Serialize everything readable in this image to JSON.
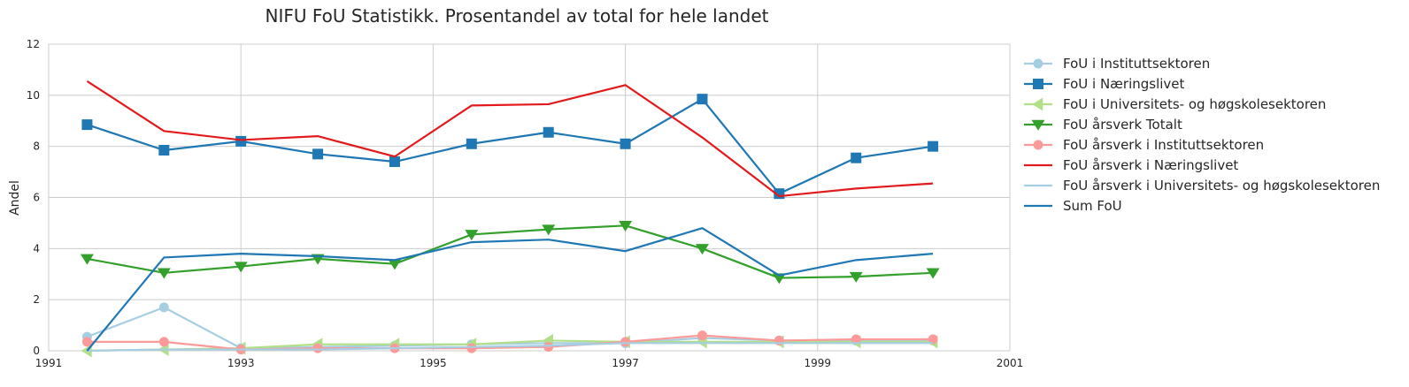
{
  "chart_data": {
    "type": "line",
    "title": "NIFU FoU Statistikk. Prosentandel av total for hele landet",
    "xlabel": "",
    "ylabel": "Andel",
    "xlim": [
      1991,
      2001
    ],
    "ylim": [
      0,
      12
    ],
    "xticks": [
      "1991",
      "1993",
      "1995",
      "1997",
      "1999",
      "2001"
    ],
    "yticks": [
      "0",
      "2",
      "4",
      "6",
      "8",
      "10",
      "12"
    ],
    "grid": true,
    "legend_position": "outside-right",
    "x": [
      1991.4,
      1992.2,
      1993.0,
      1993.8,
      1994.6,
      1995.4,
      1996.2,
      1997.0,
      1997.8,
      1998.6,
      1999.4,
      2000.2
    ],
    "series": [
      {
        "name": "FoU i Instituttsektoren",
        "color": "#a6cee3",
        "marker": "circle",
        "values": [
          0.55,
          1.7,
          0.1,
          0.15,
          0.2,
          0.25,
          0.3,
          0.3,
          0.5,
          0.4,
          0.4,
          0.4
        ]
      },
      {
        "name": "FoU i Næringslivet",
        "color": "#1f78b4",
        "marker": "square",
        "values": [
          8.85,
          7.85,
          8.2,
          7.7,
          7.4,
          8.1,
          8.55,
          8.1,
          9.85,
          6.15,
          7.55,
          8.0
        ]
      },
      {
        "name": "FoU i Universitets- og høgskolesektoren",
        "color": "#b2df8a",
        "marker": "triangle-left",
        "values": [
          0.0,
          0.05,
          0.1,
          0.25,
          0.25,
          0.25,
          0.4,
          0.35,
          0.35,
          0.35,
          0.35,
          0.35
        ]
      },
      {
        "name": "FoU årsverk Totalt",
        "color": "#33a02c",
        "marker": "triangle-down",
        "values": [
          3.6,
          3.05,
          3.3,
          3.6,
          3.4,
          4.55,
          4.75,
          4.9,
          4.0,
          2.85,
          2.9,
          3.05
        ]
      },
      {
        "name": "FoU årsverk i Instituttsektoren",
        "color": "#fb9a99",
        "marker": "circle",
        "values": [
          0.35,
          0.35,
          0.05,
          0.1,
          0.1,
          0.1,
          0.15,
          0.35,
          0.6,
          0.4,
          0.45,
          0.45
        ]
      },
      {
        "name": "FoU årsverk i Næringslivet",
        "color": "#e31a1c",
        "marker": "none",
        "values": [
          10.55,
          8.6,
          8.25,
          8.4,
          7.6,
          9.6,
          9.65,
          10.4,
          8.35,
          6.05,
          6.35,
          6.55
        ]
      },
      {
        "name": "FoU årsverk i Universitets- og høgskolesektoren",
        "color": "#a6cee3",
        "marker": "none",
        "values": [
          0.0,
          0.05,
          0.05,
          0.05,
          0.1,
          0.15,
          0.2,
          0.3,
          0.3,
          0.3,
          0.3,
          0.3
        ]
      },
      {
        "name": "Sum FoU",
        "color": "#1f78b4",
        "marker": "none",
        "values": [
          0.0,
          3.65,
          3.8,
          3.7,
          3.55,
          4.25,
          4.35,
          3.9,
          4.8,
          2.95,
          3.55,
          3.8
        ]
      }
    ]
  }
}
